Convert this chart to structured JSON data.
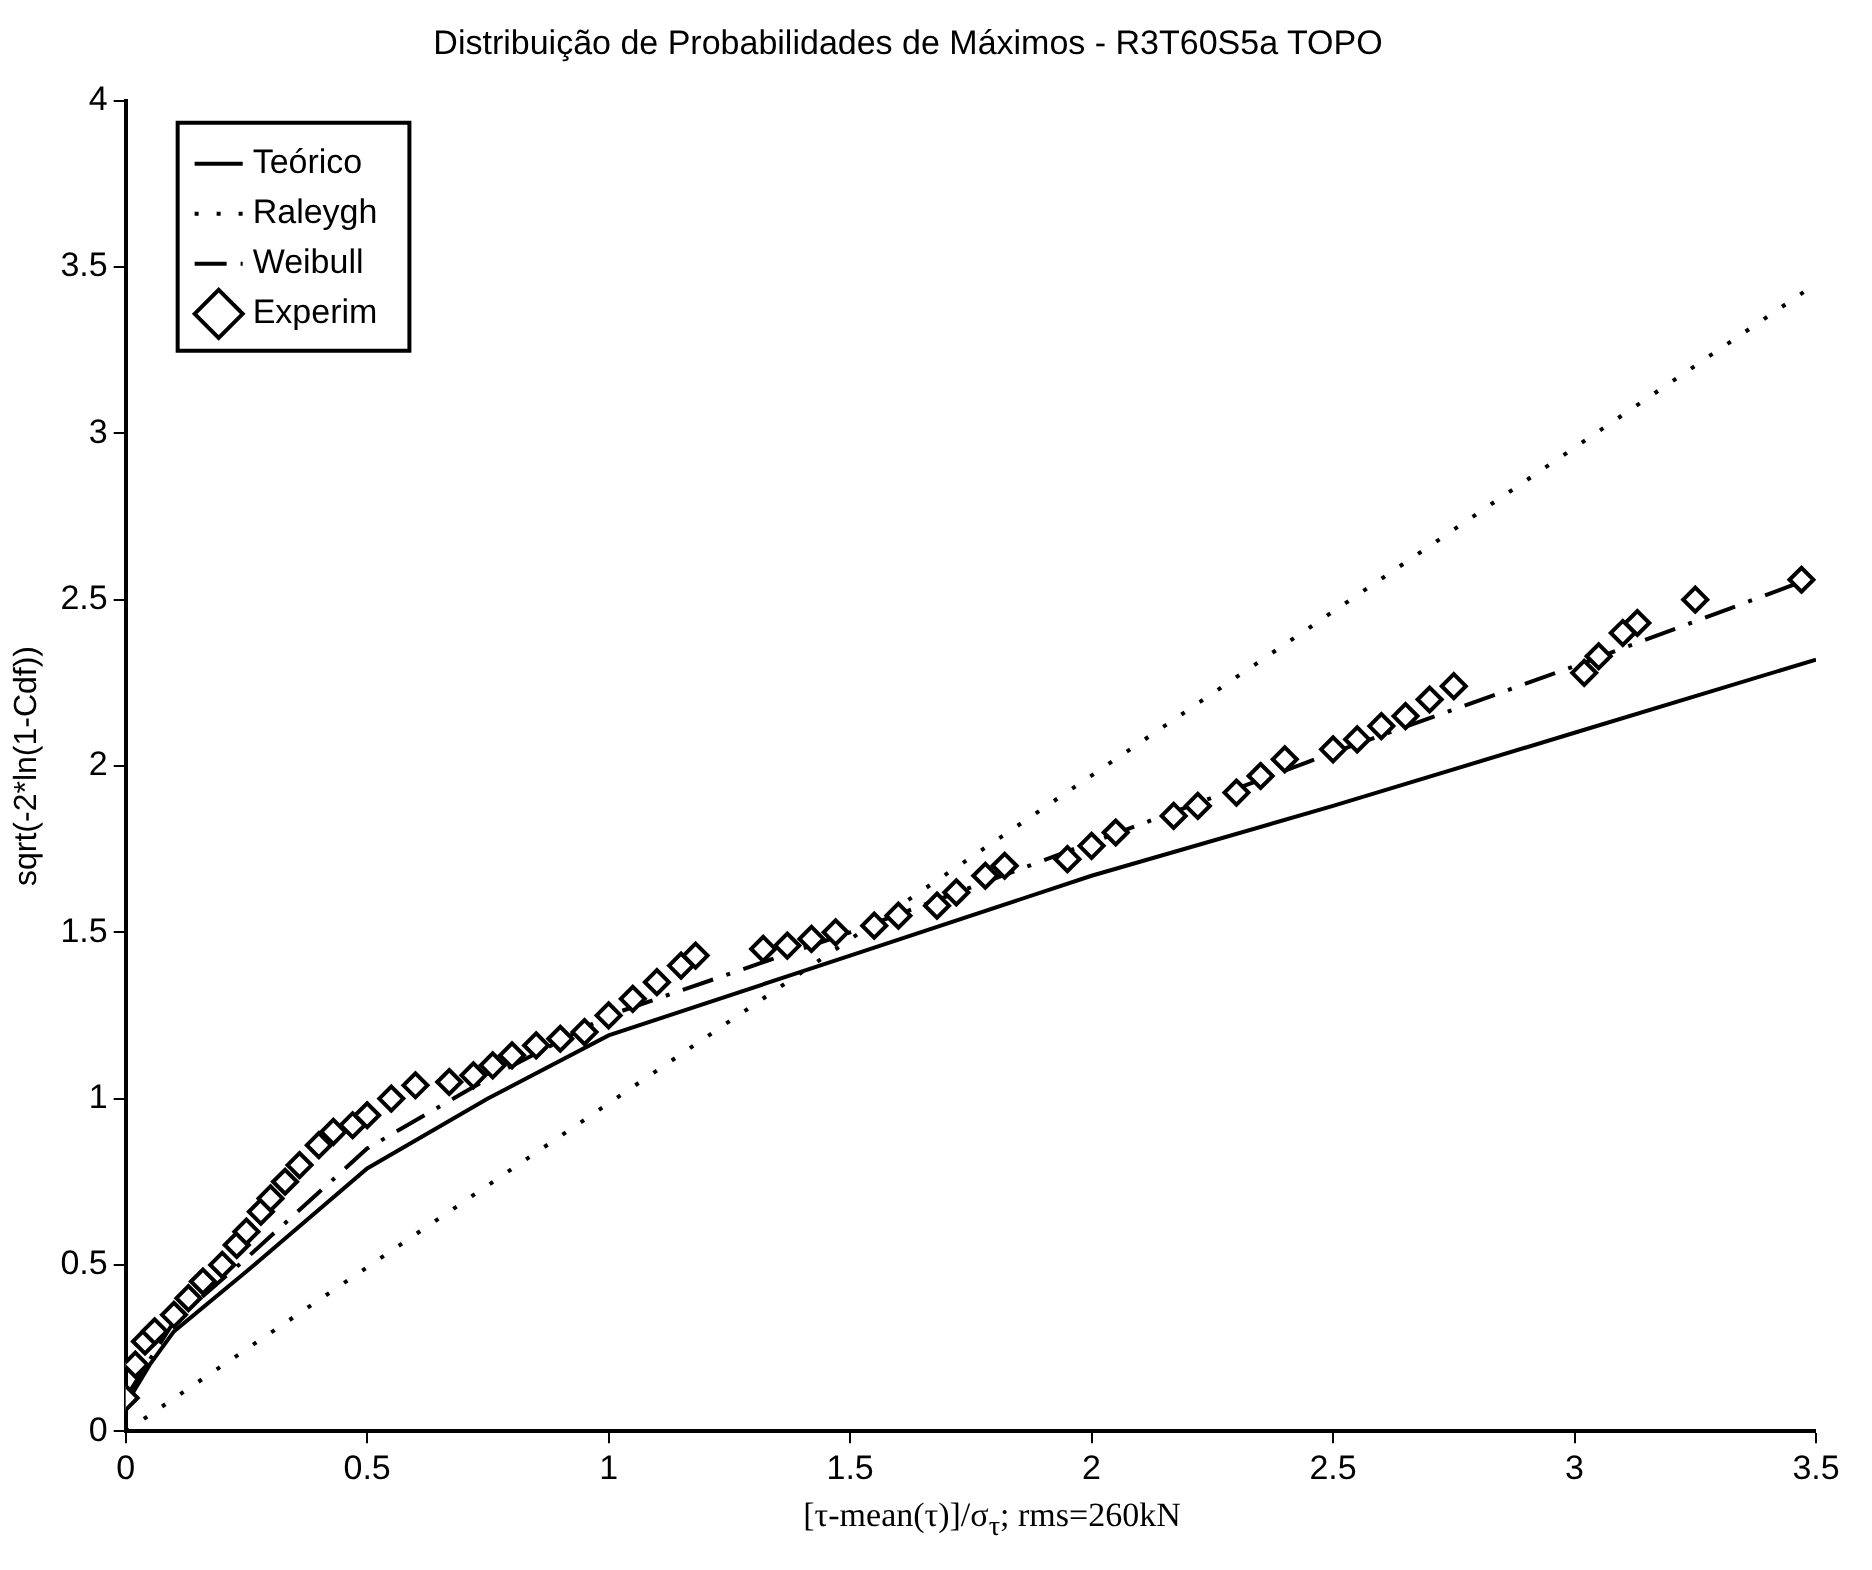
{
  "chart_data": {
    "type": "line",
    "title": "Distribuição de Probabilidades de Máximos - R3T60S5a TOPO",
    "xlabel": "[τ-mean(τ)]/σ$_{τ}$; rms=260kN",
    "ylabel": "sqrt(-2*ln(1-Cdf))",
    "xlim": [
      0,
      3.5
    ],
    "xticks": [
      0,
      0.5,
      1,
      1.5,
      2,
      2.5,
      3,
      3.5
    ],
    "ylim": [
      0,
      4
    ],
    "yticks": [
      0,
      0.5,
      1,
      1.5,
      2,
      2.5,
      3,
      3.5,
      4
    ],
    "grid": false,
    "legend": "top left",
    "series": [
      {
        "name": "Teórico",
        "type": "line",
        "line_style": "solid",
        "color": "#000000",
        "x": [
          0,
          0.05,
          0.1,
          0.25,
          0.5,
          0.75,
          1,
          1.5,
          2,
          2.5,
          3,
          3.5
        ],
        "values": [
          0.08,
          0.2,
          0.3,
          0.48,
          0.79,
          1.0,
          1.19,
          1.43,
          1.67,
          1.88,
          2.1,
          2.32
        ]
      },
      {
        "name": "Raleygh",
        "type": "line",
        "line_style": "dotted",
        "color": "#000000",
        "x": [
          0,
          3.5
        ],
        "values": [
          0,
          3.45
        ]
      },
      {
        "name": "Weibull",
        "type": "line",
        "line_style": "dashed",
        "color": "#000000",
        "x": [
          0,
          0.1,
          0.25,
          0.5,
          0.75,
          1,
          1.5,
          2,
          2.5,
          3,
          3.5
        ],
        "values": [
          0.1,
          0.33,
          0.52,
          0.85,
          1.06,
          1.25,
          1.5,
          1.77,
          2.04,
          2.3,
          2.57
        ]
      },
      {
        "name": "Experim",
        "type": "scatter",
        "marker": "diamond",
        "color": "#000000",
        "x": [
          0,
          0.02,
          0.04,
          0.06,
          0.1,
          0.13,
          0.16,
          0.2,
          0.23,
          0.25,
          0.28,
          0.3,
          0.33,
          0.36,
          0.4,
          0.43,
          0.47,
          0.5,
          0.55,
          0.6,
          0.67,
          0.72,
          0.76,
          0.8,
          0.85,
          0.9,
          0.95,
          1.0,
          1.05,
          1.1,
          1.15,
          1.18,
          1.32,
          1.37,
          1.42,
          1.47,
          1.55,
          1.6,
          1.68,
          1.72,
          1.78,
          1.82,
          1.95,
          2.0,
          2.05,
          2.17,
          2.22,
          2.3,
          2.35,
          2.4,
          2.5,
          2.55,
          2.6,
          2.65,
          2.7,
          2.75,
          3.02,
          3.05,
          3.1,
          3.13,
          3.25,
          3.47
        ],
        "values": [
          0.1,
          0.2,
          0.27,
          0.3,
          0.35,
          0.4,
          0.45,
          0.5,
          0.56,
          0.6,
          0.66,
          0.7,
          0.75,
          0.8,
          0.86,
          0.9,
          0.92,
          0.95,
          1.0,
          1.04,
          1.05,
          1.07,
          1.1,
          1.13,
          1.16,
          1.18,
          1.2,
          1.25,
          1.3,
          1.35,
          1.4,
          1.43,
          1.45,
          1.46,
          1.48,
          1.5,
          1.52,
          1.55,
          1.58,
          1.62,
          1.67,
          1.7,
          1.72,
          1.76,
          1.8,
          1.85,
          1.88,
          1.92,
          1.97,
          2.02,
          2.05,
          2.08,
          2.12,
          2.15,
          2.2,
          2.24,
          2.28,
          2.33,
          2.4,
          2.43,
          2.5,
          2.56
        ]
      }
    ]
  }
}
